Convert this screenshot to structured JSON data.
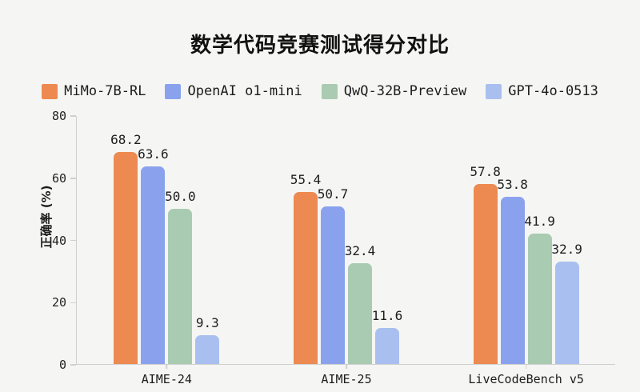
{
  "title": "数学代码竞赛测试得分对比",
  "colors": {
    "background": "#F5F6F3",
    "axis": "#CFCFCF",
    "text": "#1C1C1C"
  },
  "chart_data": {
    "type": "bar",
    "title": "数学代码竞赛测试得分对比",
    "ylabel": "正确率 (%)",
    "xlabel": "",
    "ylim": [
      0,
      80
    ],
    "yticks": [
      0,
      20,
      40,
      60,
      80
    ],
    "grid": false,
    "legend_position": "top",
    "value_label_decimals": 1,
    "categories": [
      "AIME-24",
      "AIME-25",
      "LiveCodeBench v5"
    ],
    "series": [
      {
        "name": "MiMo-7B-RL",
        "color": "#ED8A51",
        "values": [
          68.2,
          55.4,
          57.8
        ]
      },
      {
        "name": "OpenAI o1-mini",
        "color": "#8AA2EE",
        "values": [
          63.6,
          50.7,
          53.8
        ]
      },
      {
        "name": "QwQ-32B-Preview",
        "color": "#A9CBB1",
        "values": [
          50.0,
          32.4,
          41.9
        ]
      },
      {
        "name": "GPT-4o-0513",
        "color": "#A9BFF0",
        "values": [
          9.3,
          11.6,
          32.9
        ]
      }
    ]
  }
}
